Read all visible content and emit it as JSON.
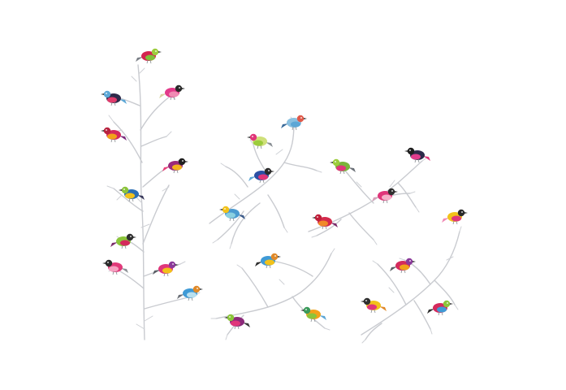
{
  "scene": {
    "background": "#ffffff",
    "branch_color": "#c9cbd0"
  },
  "birds": [
    {
      "name": "bird-1",
      "body": "#d4234f",
      "belly": "#7fbf3a",
      "head": "#9ccc3c",
      "tail": "#7a7f86",
      "facing": "right"
    },
    {
      "name": "bird-2",
      "body": "#e23a8a",
      "belly": "#f08bb4",
      "head": "#2a2a2a",
      "tail": "#d7d2a0",
      "facing": "right"
    },
    {
      "name": "bird-3",
      "body": "#2e2a4a",
      "belly": "#e03c6c",
      "head": "#5da7d6",
      "tail": "#5da7d6",
      "facing": "left"
    },
    {
      "name": "bird-4",
      "body": "#d42a5c",
      "belly": "#f2a21a",
      "head": "#b8233f",
      "tail": "#7b2a7c",
      "facing": "left"
    },
    {
      "name": "bird-5",
      "body": "#9b2a7a",
      "belly": "#f4b21c",
      "head": "#1f1f1f",
      "tail": "#e8407a",
      "facing": "right"
    },
    {
      "name": "bird-6",
      "body": "#2b6fb4",
      "belly": "#f2c21a",
      "head": "#8bc43a",
      "tail": "#3a3a5c",
      "facing": "left"
    },
    {
      "name": "bird-7",
      "body": "#8bc43a",
      "belly": "#d42a5c",
      "head": "#2f2f2f",
      "tail": "#7a2a6a",
      "facing": "right"
    },
    {
      "name": "bird-8",
      "body": "#e13a7a",
      "belly": "#f5a0c0",
      "head": "#2b2b2b",
      "tail": "#8a8f94",
      "facing": "left"
    },
    {
      "name": "bird-9",
      "body": "#e0367a",
      "belly": "#f2c21a",
      "head": "#8b3a9a",
      "tail": "#5a5f66",
      "facing": "right"
    },
    {
      "name": "bird-10",
      "body": "#3f9ad6",
      "belly": "#b8e0f0",
      "head": "#e08a2a",
      "tail": "#6a6f76",
      "facing": "right"
    },
    {
      "name": "bird-11",
      "body": "#cfe07a",
      "belly": "#9ccc3c",
      "head": "#e0367a",
      "tail": "#8a8f94",
      "facing": "left"
    },
    {
      "name": "bird-12",
      "body": "#8ac0e0",
      "belly": "#5da7d6",
      "head": "#e05a4a",
      "tail": "#3a6a9a",
      "facing": "right"
    },
    {
      "name": "bird-13",
      "body": "#2b4fa4",
      "belly": "#e0367a",
      "head": "#2a2a2a",
      "tail": "#5da7d6",
      "facing": "right"
    },
    {
      "name": "bird-14",
      "body": "#4a9ad0",
      "belly": "#8ad0e0",
      "head": "#f2c21a",
      "tail": "#3a5a8a",
      "facing": "left"
    },
    {
      "name": "bird-15",
      "body": "#d42a4c",
      "belly": "#f08a2a",
      "head": "#c01f3a",
      "tail": "#7a2a6a",
      "facing": "left"
    },
    {
      "name": "bird-16",
      "body": "#7ab43a",
      "belly": "#e0367a",
      "head": "#9ccc3c",
      "tail": "#6a6f76",
      "facing": "left"
    },
    {
      "name": "bird-17",
      "body": "#2e2a4a",
      "belly": "#e03c8c",
      "head": "#1f1f1f",
      "tail": "#e0367a",
      "facing": "left"
    },
    {
      "name": "bird-18",
      "body": "#e0367a",
      "belly": "#f5b0c8",
      "head": "#2f2f2f",
      "tail": "#d7a0b8",
      "facing": "right"
    },
    {
      "name": "bird-19",
      "body": "#f2c21a",
      "belly": "#e0367a",
      "head": "#2a2a2a",
      "tail": "#f08ab4",
      "facing": "right"
    },
    {
      "name": "bird-20",
      "body": "#3f9ad6",
      "belly": "#f2c21a",
      "head": "#e08a2a",
      "tail": "#2f2f2f",
      "facing": "right"
    },
    {
      "name": "bird-21",
      "body": "#d42a5c",
      "belly": "#f2a21a",
      "head": "#8b3a9a",
      "tail": "#5a5f66",
      "facing": "right"
    },
    {
      "name": "bird-22",
      "body": "#8b2a7a",
      "belly": "#e0367a",
      "head": "#8bc43a",
      "tail": "#3a3a3a",
      "facing": "left"
    },
    {
      "name": "bird-23",
      "body": "#f2a21a",
      "belly": "#8bc43a",
      "head": "#3a9a5a",
      "tail": "#5da7d6",
      "facing": "left"
    },
    {
      "name": "bird-24",
      "body": "#f2c21a",
      "belly": "#e0367a",
      "head": "#2f2f2f",
      "tail": "#e08a2a",
      "facing": "left"
    },
    {
      "name": "bird-25",
      "body": "#d42a5c",
      "belly": "#3f9ad6",
      "head": "#8bc43a",
      "tail": "#2f2f2f",
      "facing": "right"
    }
  ]
}
